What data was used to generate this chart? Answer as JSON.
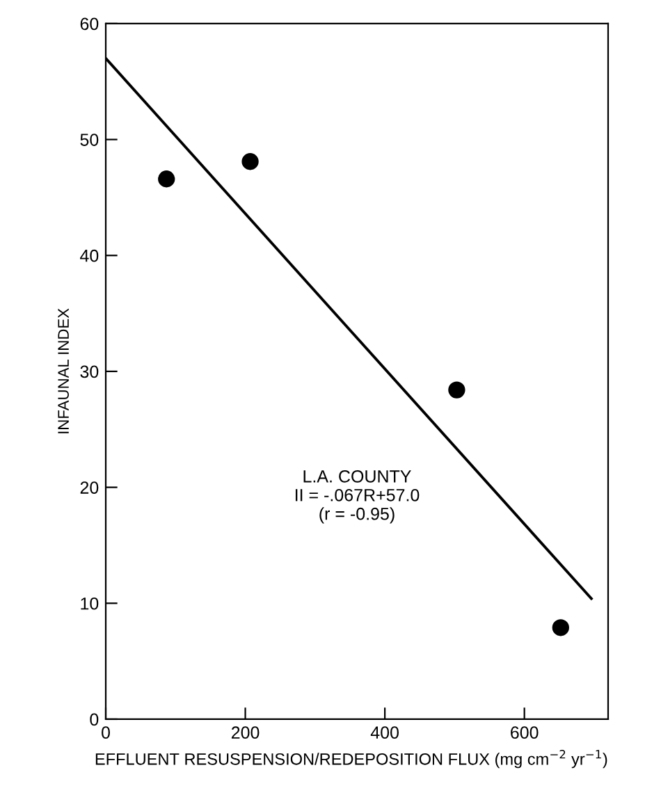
{
  "chart_data": {
    "type": "scatter",
    "xlabel": "EFFLUENT RESUSPENSION/REDEPOSITION FLUX (mg cm$^{−2}$ yr$^{−1}$)",
    "ylabel": "INFAUNAL INDEX",
    "xlim": [
      0,
      720
    ],
    "xticks": [
      0,
      200,
      400,
      600
    ],
    "ylim": [
      0,
      60
    ],
    "yticks": [
      0,
      10,
      20,
      30,
      40,
      50,
      60
    ],
    "grid": false,
    "legend": false,
    "marker": "circle",
    "annotations": [
      "L.A. COUNTY\nII = -.067R+57.0\n(r = -0.95)"
    ],
    "series": [
      {
        "color": "#000000",
        "x": [
          87,
          207,
          503,
          652
        ],
        "values": [
          46.6,
          48.1,
          28.4,
          7.9
        ]
      },
      {
        "type": "line",
        "color": "#000000",
        "line_style": "solid",
        "marker": "none",
        "x": [
          0,
          696
        ],
        "values": [
          57.0,
          10.4
        ]
      }
    ]
  }
}
